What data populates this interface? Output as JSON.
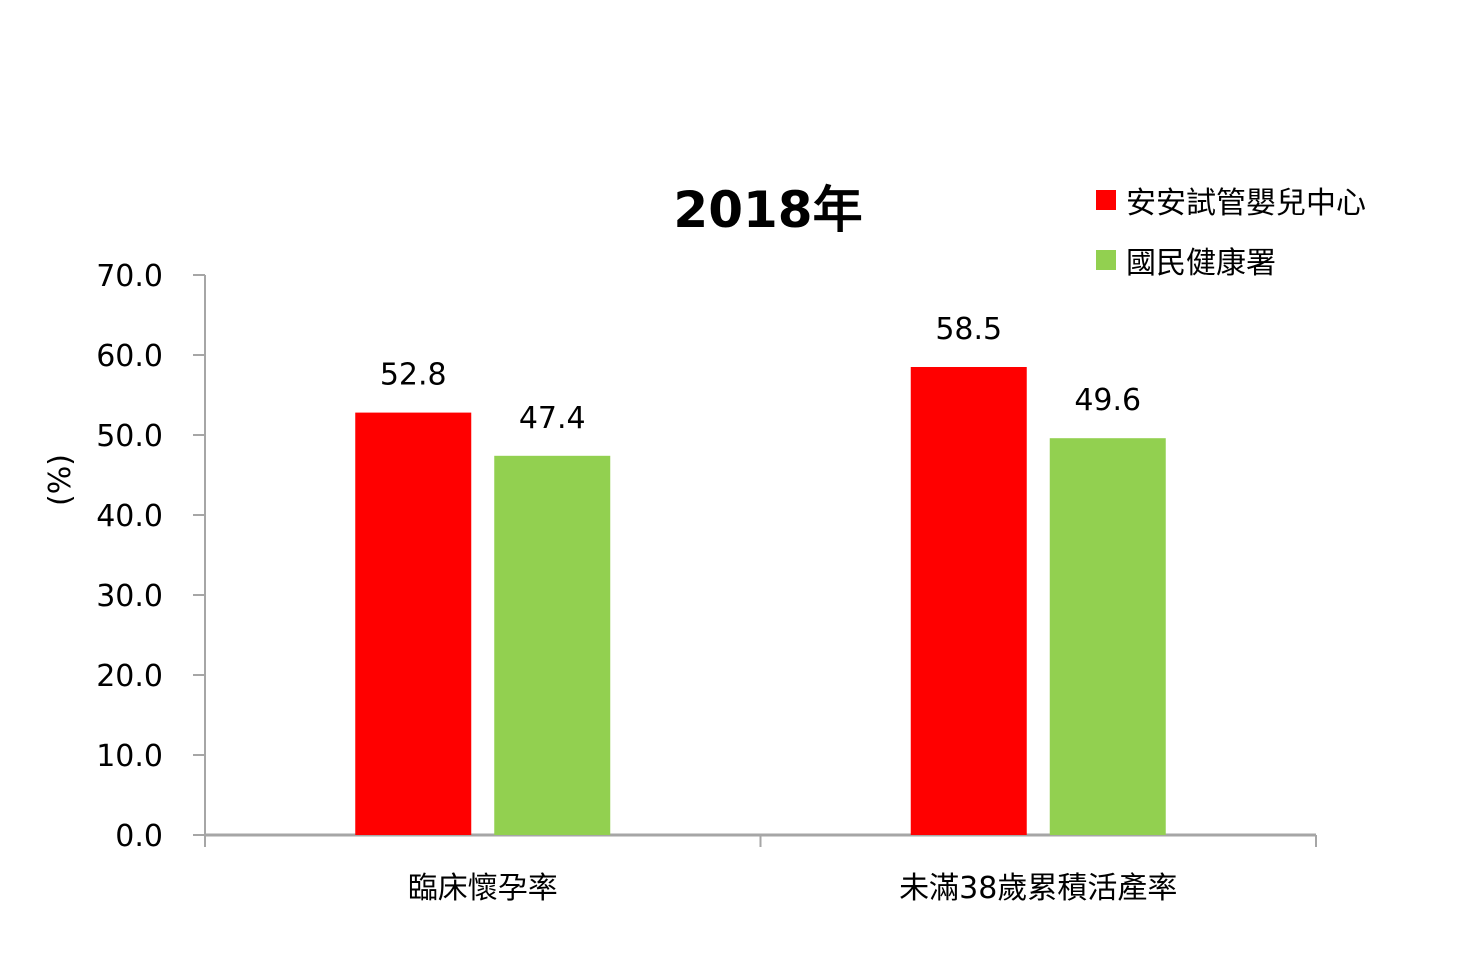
{
  "chart_data": {
    "type": "bar",
    "title": "2018年",
    "ylabel": "(%)",
    "xlabel": "",
    "categories": [
      "臨床懷孕率",
      "未滿38歲累積活產率"
    ],
    "series": [
      {
        "name": "安安試管嬰兒中心",
        "color": "#ff0000",
        "values": [
          52.8,
          58.5
        ]
      },
      {
        "name": "國民健康署",
        "color": "#92d050",
        "values": [
          47.4,
          49.6
        ]
      }
    ],
    "ylim": [
      0,
      70
    ],
    "yticks": [
      "0.0",
      "10.0",
      "20.0",
      "30.0",
      "40.0",
      "50.0",
      "60.0",
      "70.0"
    ],
    "data_labels": [
      [
        "52.8",
        "58.5"
      ],
      [
        "47.4",
        "49.6"
      ]
    ],
    "grid": false,
    "legend_position": "top-right"
  }
}
